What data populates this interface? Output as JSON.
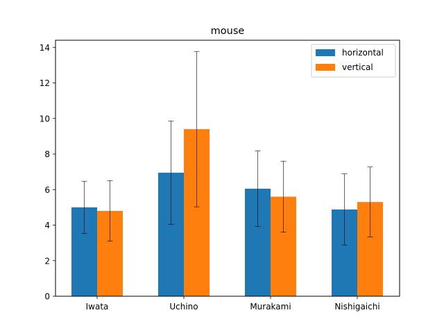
{
  "chart_data": {
    "type": "bar",
    "title": "mouse",
    "xlabel": "",
    "ylabel": "",
    "categories": [
      "Iwata",
      "Uchino",
      "Murakami",
      "Nishigaichi"
    ],
    "series": [
      {
        "name": "horizontal",
        "color": "#1f77b4",
        "values": [
          5.0,
          6.95,
          6.05,
          4.88
        ],
        "errors": [
          1.47,
          2.9,
          2.12,
          2.0
        ]
      },
      {
        "name": "vertical",
        "color": "#ff7f0e",
        "values": [
          4.8,
          9.4,
          5.6,
          5.3
        ],
        "errors": [
          1.7,
          4.37,
          2.0,
          1.97
        ]
      }
    ],
    "ylim": [
      0,
      14.4
    ],
    "yticks": [
      "0",
      "2",
      "4",
      "6",
      "8",
      "10",
      "12",
      "14"
    ],
    "grid": false,
    "legend": "top-right"
  }
}
